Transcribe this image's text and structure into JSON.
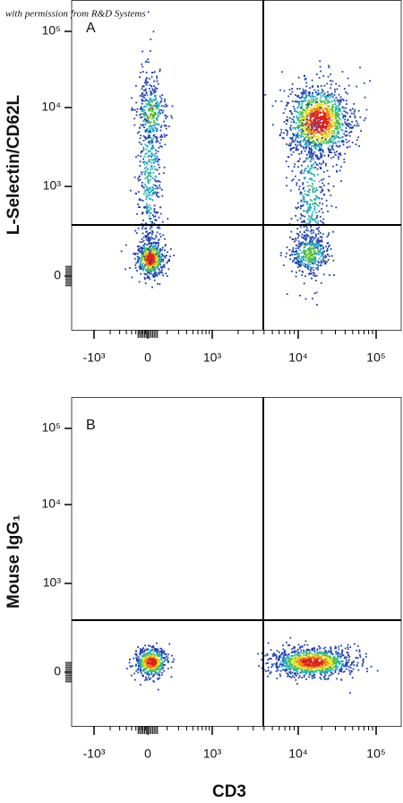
{
  "watermark": "with permission from R&D Systems",
  "x_axis_label": "CD3",
  "panels": [
    {
      "label": "A",
      "y_axis_label": "L-Selectin/CD62L",
      "x_ticks": [
        "-10³",
        "0",
        "10³",
        "10⁴",
        "10⁵"
      ],
      "y_ticks": [
        "10⁵",
        "10⁴",
        "10³",
        "0"
      ]
    },
    {
      "label": "B",
      "y_axis_label": "Mouse IgG₁",
      "x_ticks": [
        "-10³",
        "0",
        "10³",
        "10⁴",
        "10⁵"
      ],
      "y_ticks": [
        "10⁵",
        "10⁴",
        "10³",
        "0"
      ]
    }
  ]
}
